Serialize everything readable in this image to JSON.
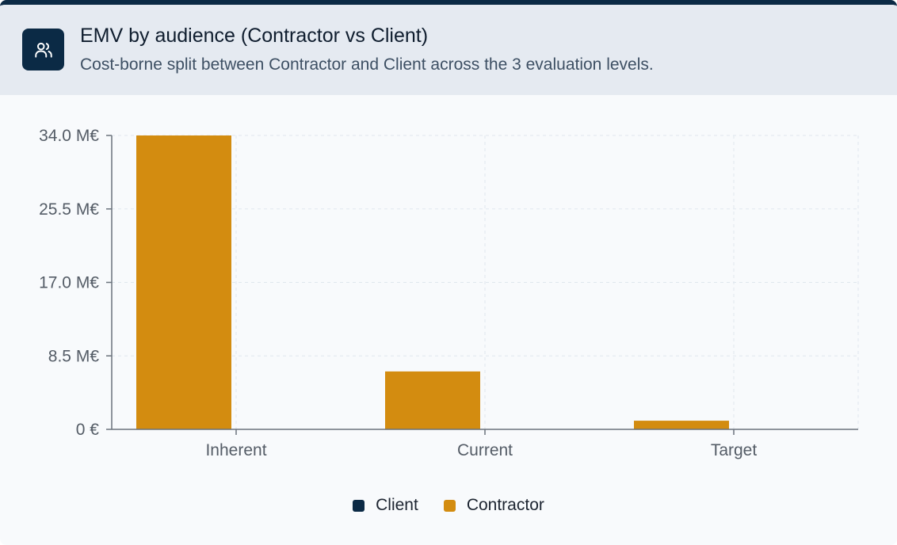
{
  "header": {
    "title": "EMV by audience (Contractor vs Client)",
    "subtitle": "Cost-borne split between Contractor and Client across the 3 evaluation levels.",
    "icon": "users-icon"
  },
  "colors": {
    "client": "#0b2a45",
    "contractor": "#d38c10"
  },
  "chart_data": {
    "type": "bar",
    "categories": [
      "Inherent",
      "Current",
      "Target"
    ],
    "series": [
      {
        "name": "Client",
        "values": [
          0,
          0,
          0
        ]
      },
      {
        "name": "Contractor",
        "values": [
          34.0,
          6.7,
          1.0
        ]
      }
    ],
    "ylim": [
      0,
      34.0
    ],
    "yticks": [
      0,
      8.5,
      17.0,
      25.5,
      34.0
    ],
    "ytick_labels": [
      "0 €",
      "8.5 M€",
      "17.0 M€",
      "25.5 M€",
      "34.0 M€"
    ],
    "grid": true,
    "legend": "bottom-center"
  }
}
